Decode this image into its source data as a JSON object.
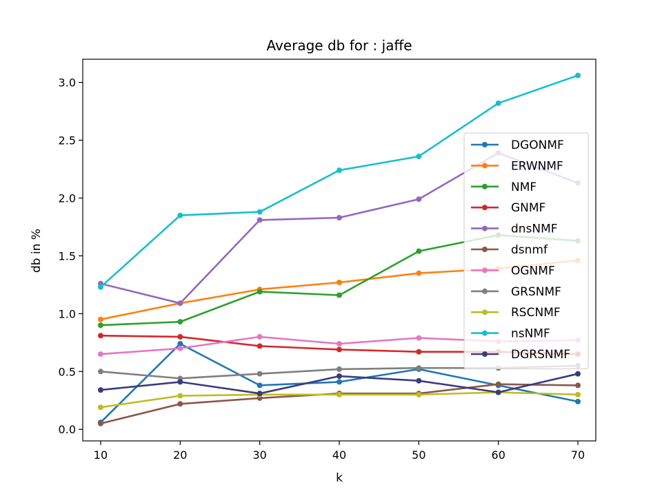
{
  "chart_data": {
    "type": "line",
    "title": "Average db for : jaffe",
    "xlabel": "k",
    "ylabel": "db in %",
    "x": [
      10,
      20,
      30,
      40,
      50,
      60,
      70
    ],
    "xlim": [
      7.75,
      72.25
    ],
    "ylim": [
      -0.1,
      3.2
    ],
    "xticks": [
      10,
      20,
      30,
      40,
      50,
      60,
      70
    ],
    "yticks": [
      0.0,
      0.5,
      1.0,
      1.5,
      2.0,
      2.5,
      3.0
    ],
    "ytick_labels": [
      "0.0",
      "0.5",
      "1.0",
      "1.5",
      "2.0",
      "2.5",
      "3.0"
    ],
    "grid": false,
    "legend_position": "right",
    "series": [
      {
        "name": "DGONMF",
        "color": "#1f77b4",
        "values": [
          0.06,
          0.74,
          0.38,
          0.41,
          0.52,
          0.38,
          0.24
        ]
      },
      {
        "name": "ERWNMF",
        "color": "#ff7f0e",
        "values": [
          0.95,
          1.09,
          1.21,
          1.27,
          1.35,
          1.39,
          1.46
        ]
      },
      {
        "name": "NMF",
        "color": "#2ca02c",
        "values": [
          0.9,
          0.93,
          1.19,
          1.16,
          1.54,
          1.68,
          1.63
        ]
      },
      {
        "name": "GNMF",
        "color": "#d62728",
        "values": [
          0.81,
          0.8,
          0.72,
          0.69,
          0.67,
          0.67,
          0.65
        ]
      },
      {
        "name": "dnsNMF",
        "color": "#9467bd",
        "values": [
          1.26,
          1.09,
          1.81,
          1.83,
          1.99,
          2.39,
          2.13
        ]
      },
      {
        "name": "dsnmf",
        "color": "#8c564b",
        "values": [
          0.05,
          0.22,
          0.27,
          0.31,
          0.31,
          0.39,
          0.38
        ]
      },
      {
        "name": "OGNMF",
        "color": "#e377c2",
        "values": [
          0.65,
          0.7,
          0.8,
          0.74,
          0.79,
          0.76,
          0.77
        ]
      },
      {
        "name": "GRSNMF",
        "color": "#7f7f7f",
        "values": [
          0.5,
          0.44,
          0.48,
          0.52,
          0.53,
          0.53,
          0.55
        ]
      },
      {
        "name": "RSCNMF",
        "color": "#bcbd22",
        "values": [
          0.19,
          0.29,
          0.3,
          0.3,
          0.3,
          0.32,
          0.3
        ]
      },
      {
        "name": "nsNMF",
        "color": "#17becf",
        "values": [
          1.23,
          1.85,
          1.88,
          2.24,
          2.36,
          2.82,
          3.06
        ]
      },
      {
        "name": "DGRSNMF",
        "color": "#3b3b7f",
        "values": [
          0.34,
          0.41,
          0.31,
          0.46,
          0.42,
          0.32,
          0.48
        ]
      }
    ]
  }
}
